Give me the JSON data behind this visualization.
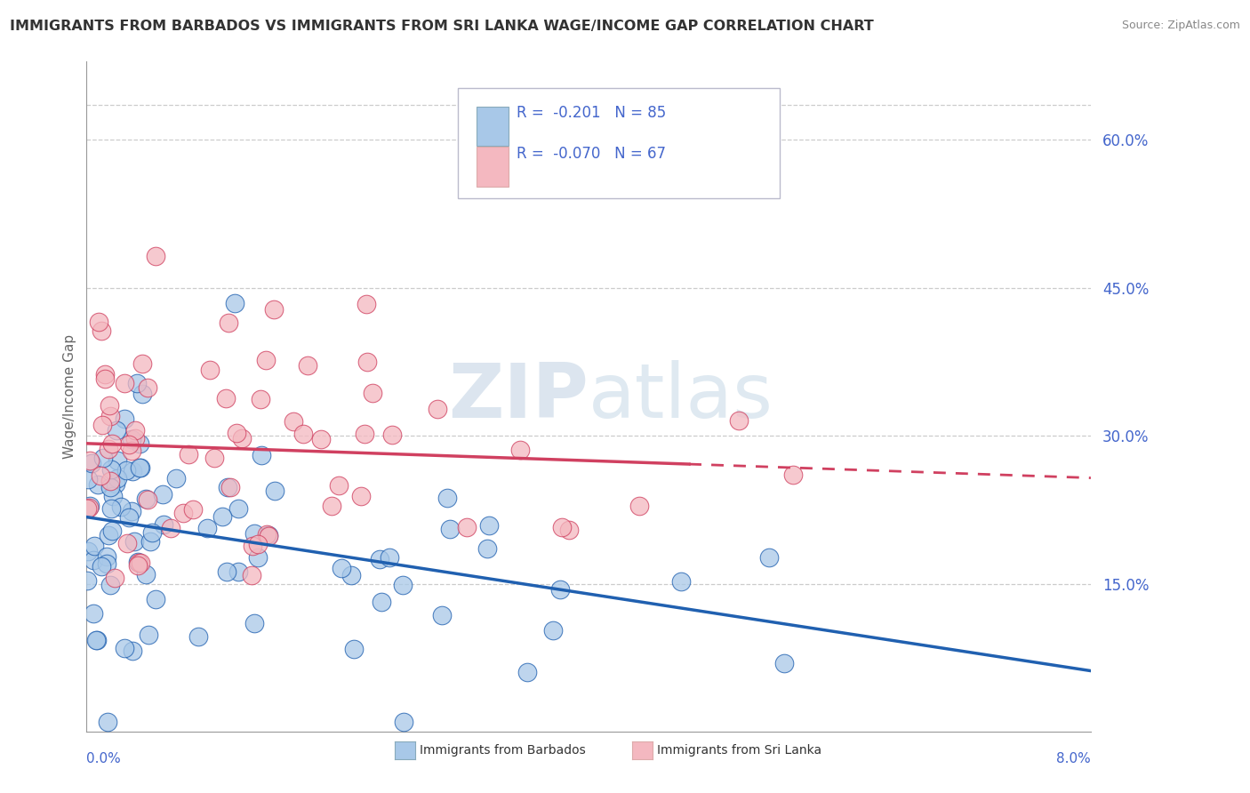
{
  "title": "IMMIGRANTS FROM BARBADOS VS IMMIGRANTS FROM SRI LANKA WAGE/INCOME GAP CORRELATION CHART",
  "source": "Source: ZipAtlas.com",
  "ylabel": "Wage/Income Gap",
  "xmin": 0.0,
  "xmax": 0.08,
  "ymin": 0.0,
  "ymax": 0.68,
  "yticks": [
    0.15,
    0.3,
    0.45,
    0.6
  ],
  "ytick_labels": [
    "15.0%",
    "30.0%",
    "45.0%",
    "60.0%"
  ],
  "legend_r1": "R =  -0.201",
  "legend_n1": "N = 85",
  "legend_r2": "R =  -0.070",
  "legend_n2": "N = 67",
  "barbados_color": "#a8c8e8",
  "srilanka_color": "#f4b8c0",
  "trend_barbados_color": "#2060b0",
  "trend_srilanka_color": "#d04060",
  "watermark_zip": "ZIP",
  "watermark_atlas": "atlas",
  "background_color": "#ffffff",
  "grid_color": "#cccccc",
  "title_color": "#333333",
  "axis_label_color": "#4466cc",
  "legend_box_color": "#aabbcc"
}
